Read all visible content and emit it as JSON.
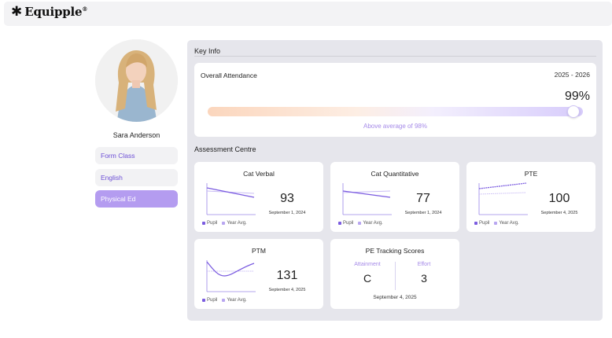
{
  "brand": {
    "name": "Equipple",
    "mark": "®",
    "icon": "asterisk-icon"
  },
  "student": {
    "name": "Sara Anderson"
  },
  "nav": {
    "items": [
      {
        "label": "Form Class",
        "active": false
      },
      {
        "label": "English",
        "active": false
      },
      {
        "label": "Physical Ed",
        "active": true
      }
    ]
  },
  "key_info": {
    "title": "Key Info",
    "attendance": {
      "label": "Overall Attendance",
      "year": "2025 - 2026",
      "value": "99%",
      "level": 0.99,
      "note": "Above average of 98%"
    }
  },
  "assessment": {
    "title": "Assessment Centre",
    "legend": {
      "pupil": "Pupil",
      "avg": "Year Avg."
    },
    "colors": {
      "pupil": "#7b5ce0",
      "avg": "#b8a6f0"
    },
    "cards": [
      {
        "title": "Cat Verbal",
        "value": "93",
        "date": "September 1, 2024"
      },
      {
        "title": "Cat Quantitative",
        "value": "77",
        "date": "September 1, 2024"
      },
      {
        "title": "PTE",
        "value": "100",
        "date": "September 4, 2025"
      },
      {
        "title": "PTM",
        "value": "131",
        "date": "September 4, 2025"
      }
    ],
    "pe": {
      "title": "PE Tracking Scores",
      "attainment_label": "Attainment",
      "attainment_value": "C",
      "effort_label": "Effort",
      "effort_value": "3",
      "date": "September 4, 2025"
    }
  }
}
